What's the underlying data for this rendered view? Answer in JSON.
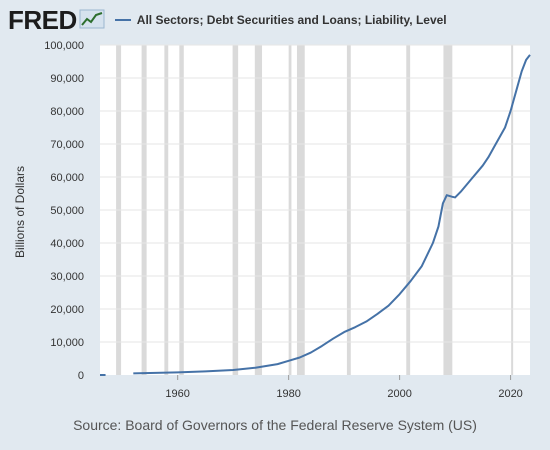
{
  "header": {
    "logo_text": "FRED",
    "logo_icon": "trend-line-icon",
    "series_label": "All Sectors; Debt Securities and Loans; Liability, Level",
    "series_color": "#4572a7"
  },
  "source": "Source: Board of Governors of the Federal Reserve System (US)",
  "colors": {
    "background": "#e1e9f0",
    "plot_area": "#ffffff",
    "recession": "#dadada",
    "line": "#4572a7"
  },
  "chart_data": {
    "type": "line",
    "title": "",
    "xlabel": "",
    "ylabel": "Billions of Dollars",
    "xlim": [
      1946,
      2023.5
    ],
    "ylim": [
      0,
      100000
    ],
    "x_ticks": [
      1960,
      1980,
      2000,
      2020
    ],
    "y_ticks": [
      0,
      10000,
      20000,
      30000,
      40000,
      50000,
      60000,
      70000,
      80000,
      90000,
      100000
    ],
    "y_tick_labels": [
      "0",
      "10,000",
      "20,000",
      "30,000",
      "40,000",
      "50,000",
      "60,000",
      "70,000",
      "80,000",
      "90,000",
      "100,000"
    ],
    "grid": true,
    "recessions": [
      [
        1948.9,
        1949.8
      ],
      [
        1953.5,
        1954.4
      ],
      [
        1957.6,
        1958.3
      ],
      [
        1960.3,
        1961.1
      ],
      [
        1969.9,
        1970.9
      ],
      [
        1973.9,
        1975.2
      ],
      [
        1980.0,
        1980.5
      ],
      [
        1981.5,
        1982.9
      ],
      [
        1990.5,
        1991.2
      ],
      [
        2001.2,
        2001.9
      ],
      [
        2007.9,
        2009.5
      ],
      [
        2020.1,
        2020.4
      ]
    ],
    "series": [
      {
        "name": "All Sectors; Debt Securities and Loans; Liability, Level",
        "points": [
          [
            1946,
            0
          ],
          [
            1947,
            0
          ],
          [
            1952,
            500
          ],
          [
            1955,
            600
          ],
          [
            1960,
            800
          ],
          [
            1965,
            1100
          ],
          [
            1970,
            1500
          ],
          [
            1974,
            2200
          ],
          [
            1978,
            3300
          ],
          [
            1980,
            4300
          ],
          [
            1982,
            5300
          ],
          [
            1984,
            6800
          ],
          [
            1986,
            8800
          ],
          [
            1988,
            11000
          ],
          [
            1990,
            13000
          ],
          [
            1992,
            14500
          ],
          [
            1994,
            16200
          ],
          [
            1996,
            18500
          ],
          [
            1998,
            21000
          ],
          [
            2000,
            24500
          ],
          [
            2002,
            28500
          ],
          [
            2004,
            33000
          ],
          [
            2006,
            40000
          ],
          [
            2007,
            45000
          ],
          [
            2007.8,
            52000
          ],
          [
            2008.5,
            54500
          ],
          [
            2009.5,
            54000
          ],
          [
            2010,
            53800
          ],
          [
            2011,
            55500
          ],
          [
            2012,
            57500
          ],
          [
            2013,
            59500
          ],
          [
            2014,
            61500
          ],
          [
            2015,
            63500
          ],
          [
            2016,
            66000
          ],
          [
            2017,
            69000
          ],
          [
            2018,
            72000
          ],
          [
            2019,
            75000
          ],
          [
            2020,
            80000
          ],
          [
            2020.5,
            83000
          ],
          [
            2021,
            86000
          ],
          [
            2022,
            92000
          ],
          [
            2022.8,
            95500
          ],
          [
            2023.5,
            97000
          ]
        ]
      }
    ]
  }
}
